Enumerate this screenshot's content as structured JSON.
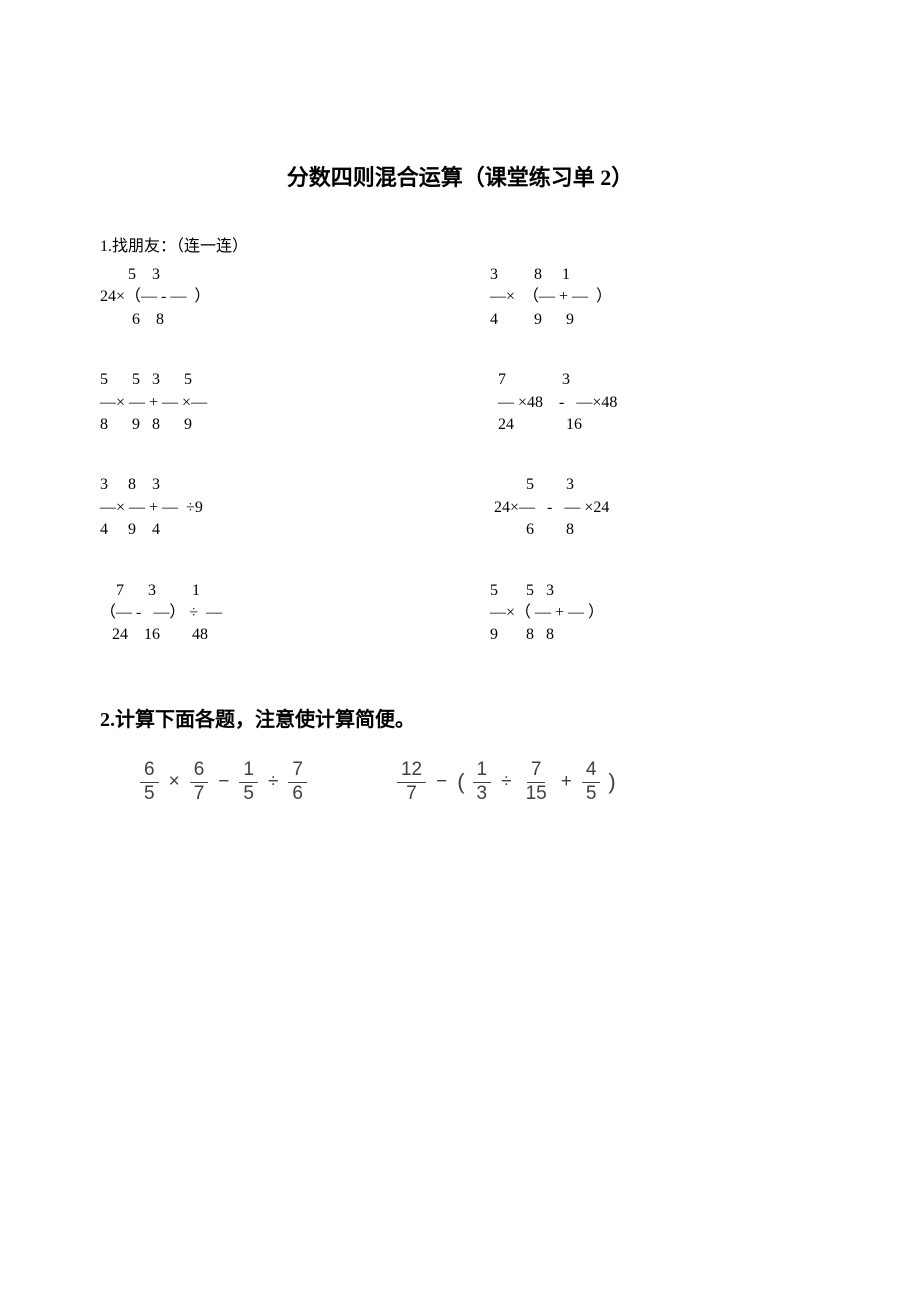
{
  "title": "分数四则混合运算（课堂练习单 2）",
  "q1": {
    "label": "1.找朋友：（连一连）",
    "cells": [
      "       5    3\n24×（— - —  ）\n        6    8",
      "3         8     1\n—×  （— + —  ）\n4         9      9",
      "5      5   3      5\n—× — + — ×—\n8      9   8      9",
      "  7              3\n  — ×48    -   —×48\n  24             16",
      "3     8    3\n—× — + —  ÷9\n4     9    4",
      "         5        3\n 24×—   -   — ×24\n         6        8",
      "    7      3         1\n（— -   —） ÷  —\n   24    16        48",
      "5       5   3\n—×（ — + — ）\n9       8   8"
    ]
  },
  "q2": {
    "label": "2.计算下面各题，注意使计算简便。",
    "expr1": {
      "f1": {
        "n": "6",
        "d": "5"
      },
      "op1": "×",
      "f2": {
        "n": "6",
        "d": "7"
      },
      "op2": "−",
      "f3": {
        "n": "1",
        "d": "5"
      },
      "op3": "÷",
      "f4": {
        "n": "7",
        "d": "6"
      }
    },
    "expr2": {
      "f1": {
        "n": "12",
        "d": "7"
      },
      "op1": "−",
      "lp": "(",
      "f2": {
        "n": "1",
        "d": "3"
      },
      "op2": "÷",
      "f3": {
        "n": "7",
        "d": "15"
      },
      "op3": "+",
      "f4": {
        "n": "4",
        "d": "5"
      },
      "rp": ")"
    }
  },
  "colors": {
    "bg": "#ffffff",
    "text": "#000000",
    "formula_text": "#404040"
  }
}
